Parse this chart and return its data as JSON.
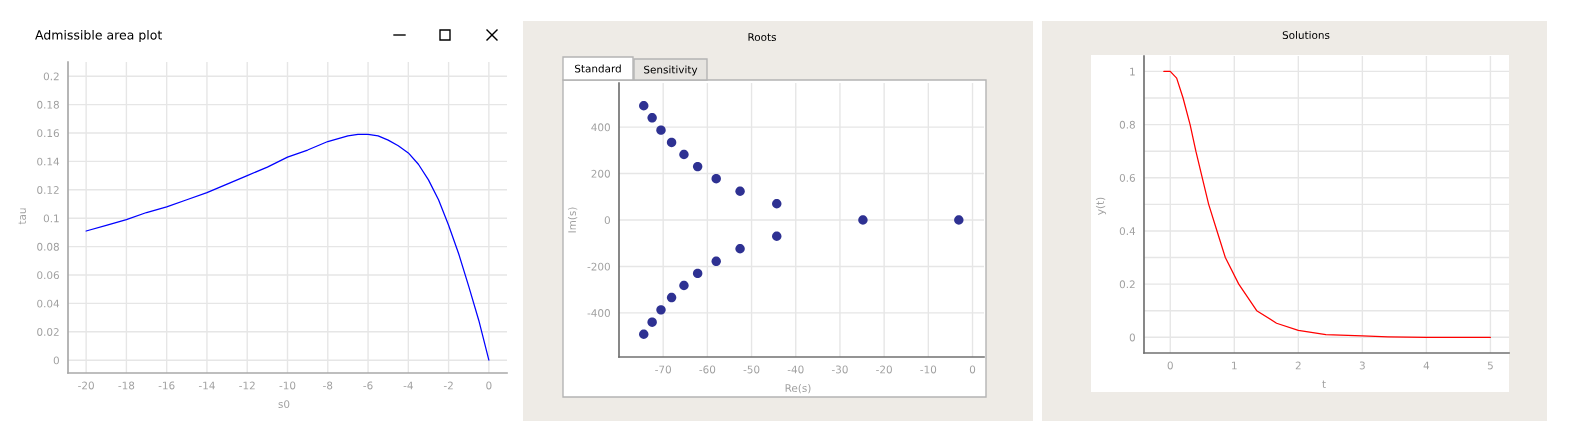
{
  "chart_data": [
    {
      "type": "line",
      "title": "Admissible area plot",
      "xlabel": "s0",
      "ylabel": "tau",
      "x": [
        -20,
        -19,
        -18,
        -17,
        -16,
        -15,
        -14,
        -13,
        -12,
        -11,
        -10,
        -9,
        -8,
        -7,
        -6.5,
        -6,
        -5.5,
        -5,
        -4.5,
        -4,
        -3.5,
        -3,
        -2.5,
        -2,
        -1.5,
        -1,
        -0.5,
        0
      ],
      "series": [
        {
          "color": "#0000ff",
          "values": [
            0.091,
            0.095,
            0.099,
            0.104,
            0.108,
            0.113,
            0.118,
            0.124,
            0.13,
            0.136,
            0.143,
            0.148,
            0.154,
            0.158,
            0.159,
            0.159,
            0.158,
            0.155,
            0.151,
            0.146,
            0.138,
            0.127,
            0.113,
            0.095,
            0.075,
            0.052,
            0.028,
            0
          ]
        }
      ],
      "xlim": [
        -20.9,
        0.9
      ],
      "ylim": [
        -0.009,
        0.21
      ],
      "xticks": [
        -20,
        -18,
        -16,
        -14,
        -12,
        -10,
        -8,
        -6,
        -4,
        -2,
        0
      ],
      "yticks": [
        0,
        0.02,
        0.04,
        0.06,
        0.08,
        0.1,
        0.12,
        0.14,
        0.16,
        0.18,
        0.2
      ],
      "grid": true,
      "line_style": "solid"
    },
    {
      "type": "scatter",
      "title": "Roots",
      "annotations": [
        "Standard",
        "Sensitivity"
      ],
      "xlabel": "Re(s)",
      "ylabel": "Im(s)",
      "x": [
        -74.4,
        -72.5,
        -70.5,
        -68.1,
        -65.3,
        -62.2,
        -58,
        -52.6,
        -44.3,
        -24.8,
        -3.1,
        -44.3,
        -52.6,
        -58,
        -62.2,
        -65.3,
        -68.1,
        -70.5,
        -72.5,
        -74.4
      ],
      "series": [
        {
          "color": "#2e3192",
          "values": [
            492,
            440,
            387,
            334,
            282,
            230,
            178,
            124,
            70,
            0,
            0,
            -70,
            -124,
            -178,
            -230,
            -282,
            -334,
            -387,
            -440,
            -492
          ]
        }
      ],
      "xlim": [
        -80,
        2.6
      ],
      "ylim": [
        -590,
        590
      ],
      "xticks": [
        -70,
        -60,
        -50,
        -40,
        -30,
        -20,
        -10,
        0
      ],
      "yticks": [
        -400,
        -200,
        0,
        200,
        400
      ],
      "grid": true,
      "marker": "circle"
    },
    {
      "type": "line",
      "title": "Solutions",
      "xlabel": "t",
      "ylabel": "y(t)",
      "x": [
        -0.1,
        0,
        0.1,
        0.2,
        0.31,
        0.4,
        0.5,
        0.6,
        0.73,
        0.86,
        1.07,
        1.35,
        1.66,
        2,
        2.43,
        3,
        3.4,
        4,
        5
      ],
      "series": [
        {
          "color": "#ff0000",
          "values": [
            1,
            1,
            0.975,
            0.9,
            0.8,
            0.7,
            0.6,
            0.5,
            0.4,
            0.3,
            0.2,
            0.1,
            0.053,
            0.026,
            0.01,
            0.005,
            0.002,
            0,
            0
          ]
        }
      ],
      "xlim": [
        -0.41,
        5.29
      ],
      "ylim": [
        -0.059,
        1.058
      ],
      "xticks": [
        0,
        1,
        2,
        3,
        4,
        5
      ],
      "yticks": [
        0,
        {
          "value": 0.1,
          "label": null
        },
        0.2,
        {
          "value": 0.3,
          "label": null
        },
        0.4,
        {
          "value": 0.5,
          "label": null
        },
        0.6,
        {
          "value": 0.7,
          "label": null
        },
        0.8,
        {
          "value": 0.9,
          "label": null
        },
        1
      ],
      "grid": true,
      "line_style": "solid"
    }
  ]
}
